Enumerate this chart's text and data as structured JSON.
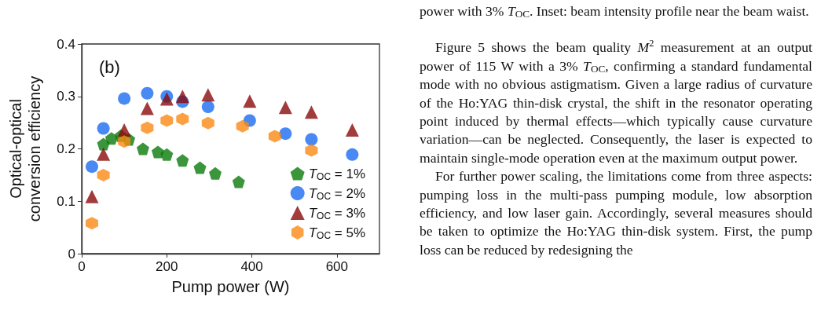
{
  "chart_data": {
    "type": "scatter",
    "xlabel": "Pump power (W)",
    "ylabel": "Optical-optical\nconversion efficiency",
    "annotations": [
      "(b)",
      "power with 3% T$_{OC}$. Inset: beam intensity profile near the beam waist.",
      "Figure 5 shows the beam quality M$^{2}$ measurement at an output power of 115 W with a 3% T$_{OC}$, confirming a standard fundamental mode with no obvious astigmatism. Given a large radius of curvature of the Ho:YAG thin-disk crystal, the shift in the resonator operating point induced by thermal effects—which typically cause curvature variation—can be neglected. Consequently, the laser is expected to maintain single-mode operation even at the maximum output power.",
      "For further power scaling, the limitations come from three aspects: pumping loss in the multi-pass pumping module, low absorption efficiency, and low laser gain. Accordingly, several measures should be taken to optimize the Ho:YAG thin-disk system. First, the pump loss can be reduced by redesigning the"
    ],
    "series": [
      {
        "name": "T$_{OC}$ = 1%",
        "color": "#0a7a0a",
        "x": [
          51,
          70,
          92,
          111,
          144,
          179,
          200,
          237,
          278,
          314,
          369
        ],
        "values": [
          0.209,
          0.22,
          0.225,
          0.218,
          0.2,
          0.194,
          0.189,
          0.178,
          0.164,
          0.153,
          0.137
        ]
      },
      {
        "name": "T$_{OC}$ = 2%",
        "color": "#1a6cf0",
        "marker": "circle",
        "x": [
          24,
          51,
          100,
          154,
          200,
          237,
          297,
          395,
          479,
          540,
          636
        ],
        "values": [
          0.166,
          0.239,
          0.296,
          0.306,
          0.3,
          0.29,
          0.28,
          0.254,
          0.229,
          0.218,
          0.189
        ]
      },
      {
        "name": "T$_{OC}$ = 3%",
        "color": "#8b0a0a",
        "marker": "triangle",
        "x": [
          24,
          51,
          100,
          154,
          200,
          237,
          297,
          395,
          479,
          540,
          636
        ],
        "values": [
          0.109,
          0.19,
          0.236,
          0.277,
          0.295,
          0.3,
          0.303,
          0.291,
          0.279,
          0.27,
          0.236
        ]
      },
      {
        "name": "T$_{OC}$ = 5%",
        "color": "#fb8a14",
        "x": [
          24,
          51,
          100,
          154,
          200,
          237,
          297,
          378,
          454,
          540
        ],
        "values": [
          0.058,
          0.15,
          0.214,
          0.24,
          0.254,
          0.257,
          0.249,
          0.243,
          0.224,
          0.197
        ]
      }
    ],
    "xlim": [
      0,
      700
    ],
    "xticks": [
      0,
      200,
      400,
      600
    ],
    "ylim": [
      0,
      0.4
    ],
    "yticks": [
      0,
      0.1,
      0.2,
      0.3,
      0.4
    ],
    "grid": false,
    "legend": "bottom right"
  }
}
